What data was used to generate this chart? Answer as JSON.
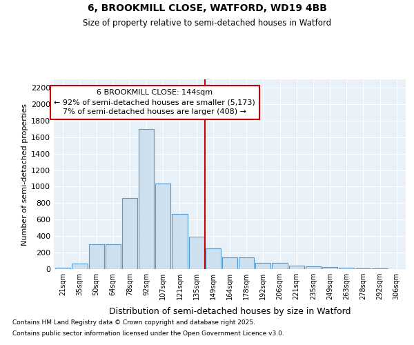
{
  "title1": "6, BROOKMILL CLOSE, WATFORD, WD19 4BB",
  "title2": "Size of property relative to semi-detached houses in Watford",
  "xlabel": "Distribution of semi-detached houses by size in Watford",
  "ylabel": "Number of semi-detached properties",
  "bin_labels": [
    "21sqm",
    "35sqm",
    "50sqm",
    "64sqm",
    "78sqm",
    "92sqm",
    "107sqm",
    "121sqm",
    "135sqm",
    "149sqm",
    "164sqm",
    "178sqm",
    "192sqm",
    "206sqm",
    "221sqm",
    "235sqm",
    "249sqm",
    "263sqm",
    "278sqm",
    "292sqm",
    "306sqm"
  ],
  "bar_values": [
    15,
    70,
    305,
    305,
    860,
    1700,
    1040,
    670,
    395,
    250,
    140,
    140,
    75,
    75,
    40,
    30,
    25,
    20,
    10,
    5,
    3
  ],
  "bar_color": "#cce0f0",
  "bar_edge_color": "#5599cc",
  "vline_index": 9,
  "vline_color": "#cc0000",
  "annotation_line1": "6 BROOKMILL CLOSE: 144sqm",
  "annotation_line2": "← 92% of semi-detached houses are smaller (5,173)",
  "annotation_line3": "7% of semi-detached houses are larger (408) →",
  "ylim": [
    0,
    2300
  ],
  "yticks": [
    0,
    200,
    400,
    600,
    800,
    1000,
    1200,
    1400,
    1600,
    1800,
    2000,
    2200
  ],
  "footnote1": "Contains HM Land Registry data © Crown copyright and database right 2025.",
  "footnote2": "Contains public sector information licensed under the Open Government Licence v3.0.",
  "bg_color": "#ffffff",
  "plot_bg_color": "#e8f0f8",
  "grid_color": "#ffffff"
}
